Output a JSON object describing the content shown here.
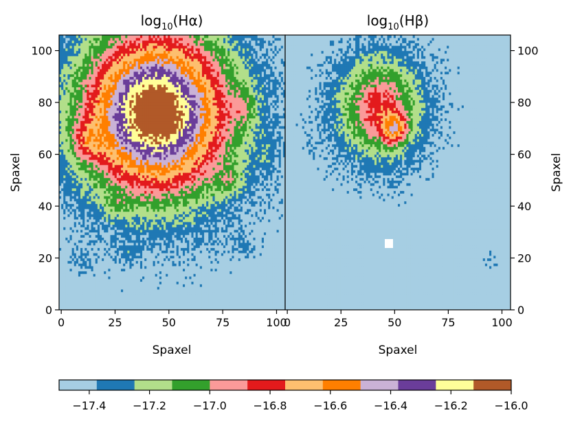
{
  "chart_data": [
    {
      "type": "heatmap",
      "title_base": "log",
      "title_sub": "10",
      "title_arg": "(Hα)",
      "xlabel": "Spaxel",
      "ylabel": "Spaxel",
      "xlim": [
        -1,
        104
      ],
      "ylim": [
        0,
        106
      ],
      "xticks": [
        0,
        25,
        50,
        75,
        100
      ],
      "yticks": [
        0,
        20,
        40,
        60,
        80,
        100
      ],
      "yaxis_side": "left",
      "sources": [
        {
          "x": 44,
          "y": 76,
          "peak": -15.95,
          "sx": 23,
          "sy": 21
        },
        {
          "x": 12,
          "y": 65,
          "peak": -17.15,
          "sx": 5,
          "sy": 5
        },
        {
          "x": 85,
          "y": 78,
          "peak": -17.25,
          "sx": 4,
          "sy": 5
        },
        {
          "x": 78,
          "y": 50,
          "peak": -17.25,
          "sx": 5,
          "sy": 4
        },
        {
          "x": 10,
          "y": 20,
          "peak": -17.35,
          "sx": 4,
          "sy": 3
        },
        {
          "x": 32,
          "y": 22,
          "peak": -17.35,
          "sx": 3,
          "sy": 3
        },
        {
          "x": 85,
          "y": 25,
          "peak": -17.35,
          "sx": 4,
          "sy": 3
        },
        {
          "x": 25,
          "y": 40,
          "peak": -17.3,
          "sx": 4,
          "sy": 3
        },
        {
          "x": 95,
          "y": 60,
          "peak": -17.35,
          "sx": 3,
          "sy": 4
        }
      ]
    },
    {
      "type": "heatmap",
      "title_base": "log",
      "title_sub": "10",
      "title_arg": "(Hβ)",
      "xlabel": "Spaxel",
      "ylabel": "Spaxel",
      "xlim": [
        -1,
        104
      ],
      "ylim": [
        0,
        106
      ],
      "xticks": [
        0,
        25,
        50,
        75,
        100
      ],
      "yticks": [
        0,
        20,
        40,
        60,
        80,
        100
      ],
      "yaxis_side": "right",
      "sources": [
        {
          "x": 43,
          "y": 78,
          "peak": -16.82,
          "sx": 13,
          "sy": 13
        },
        {
          "x": 50,
          "y": 70,
          "peak": -16.9,
          "sx": 4,
          "sy": 4
        },
        {
          "x": 95,
          "y": 20,
          "peak": -17.38,
          "sx": 2,
          "sy": 2
        },
        {
          "x": 10,
          "y": 65,
          "peak": -17.38,
          "sx": 2,
          "sy": 2
        }
      ]
    }
  ],
  "colorbar": {
    "levels": [
      -17.5,
      -17.375,
      -17.25,
      -17.125,
      -17.0,
      -16.875,
      -16.75,
      -16.625,
      -16.5,
      -16.375,
      -16.25,
      -16.125,
      -16.0
    ],
    "colors": [
      "#a6cee3",
      "#1f78b4",
      "#b2df8a",
      "#33a02c",
      "#fb9a99",
      "#e31a1c",
      "#fdbf6f",
      "#ff7f00",
      "#cab2d6",
      "#6a3d9a",
      "#ffff99",
      "#b15928"
    ],
    "ticks": [
      -17.4,
      -17.2,
      -17.0,
      -16.8,
      -16.6,
      -16.4,
      -16.2,
      -16.0
    ],
    "tick_labels": [
      "−17.4",
      "−17.2",
      "−17.0",
      "−16.8",
      "−16.6",
      "−16.4",
      "−16.2",
      "−16.0"
    ]
  },
  "background_value": -17.45
}
